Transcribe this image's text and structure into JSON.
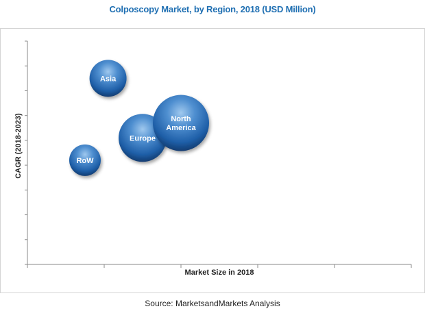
{
  "chart_data": {
    "type": "bubble",
    "title": "Colposcopy Market, by Region, 2018 (USD Million)",
    "xlabel": "Market Size in 2018",
    "ylabel": "CAGR (2018-2023)",
    "xlim": [
      0,
      10
    ],
    "ylim": [
      0,
      9
    ],
    "grid": false,
    "bubble_color": "#1f5fa8",
    "points": [
      {
        "label": "Asia",
        "x": 2.1,
        "y": 7.5,
        "size": 27
      },
      {
        "label": "RoW",
        "x": 1.5,
        "y": 4.2,
        "size": 23
      },
      {
        "label": "Europe",
        "x": 3.0,
        "y": 5.1,
        "size": 35
      },
      {
        "label": "North America",
        "x": 4.0,
        "y": 5.7,
        "size": 41
      }
    ]
  },
  "source": "Source: MarketsandMarkets Analysis"
}
